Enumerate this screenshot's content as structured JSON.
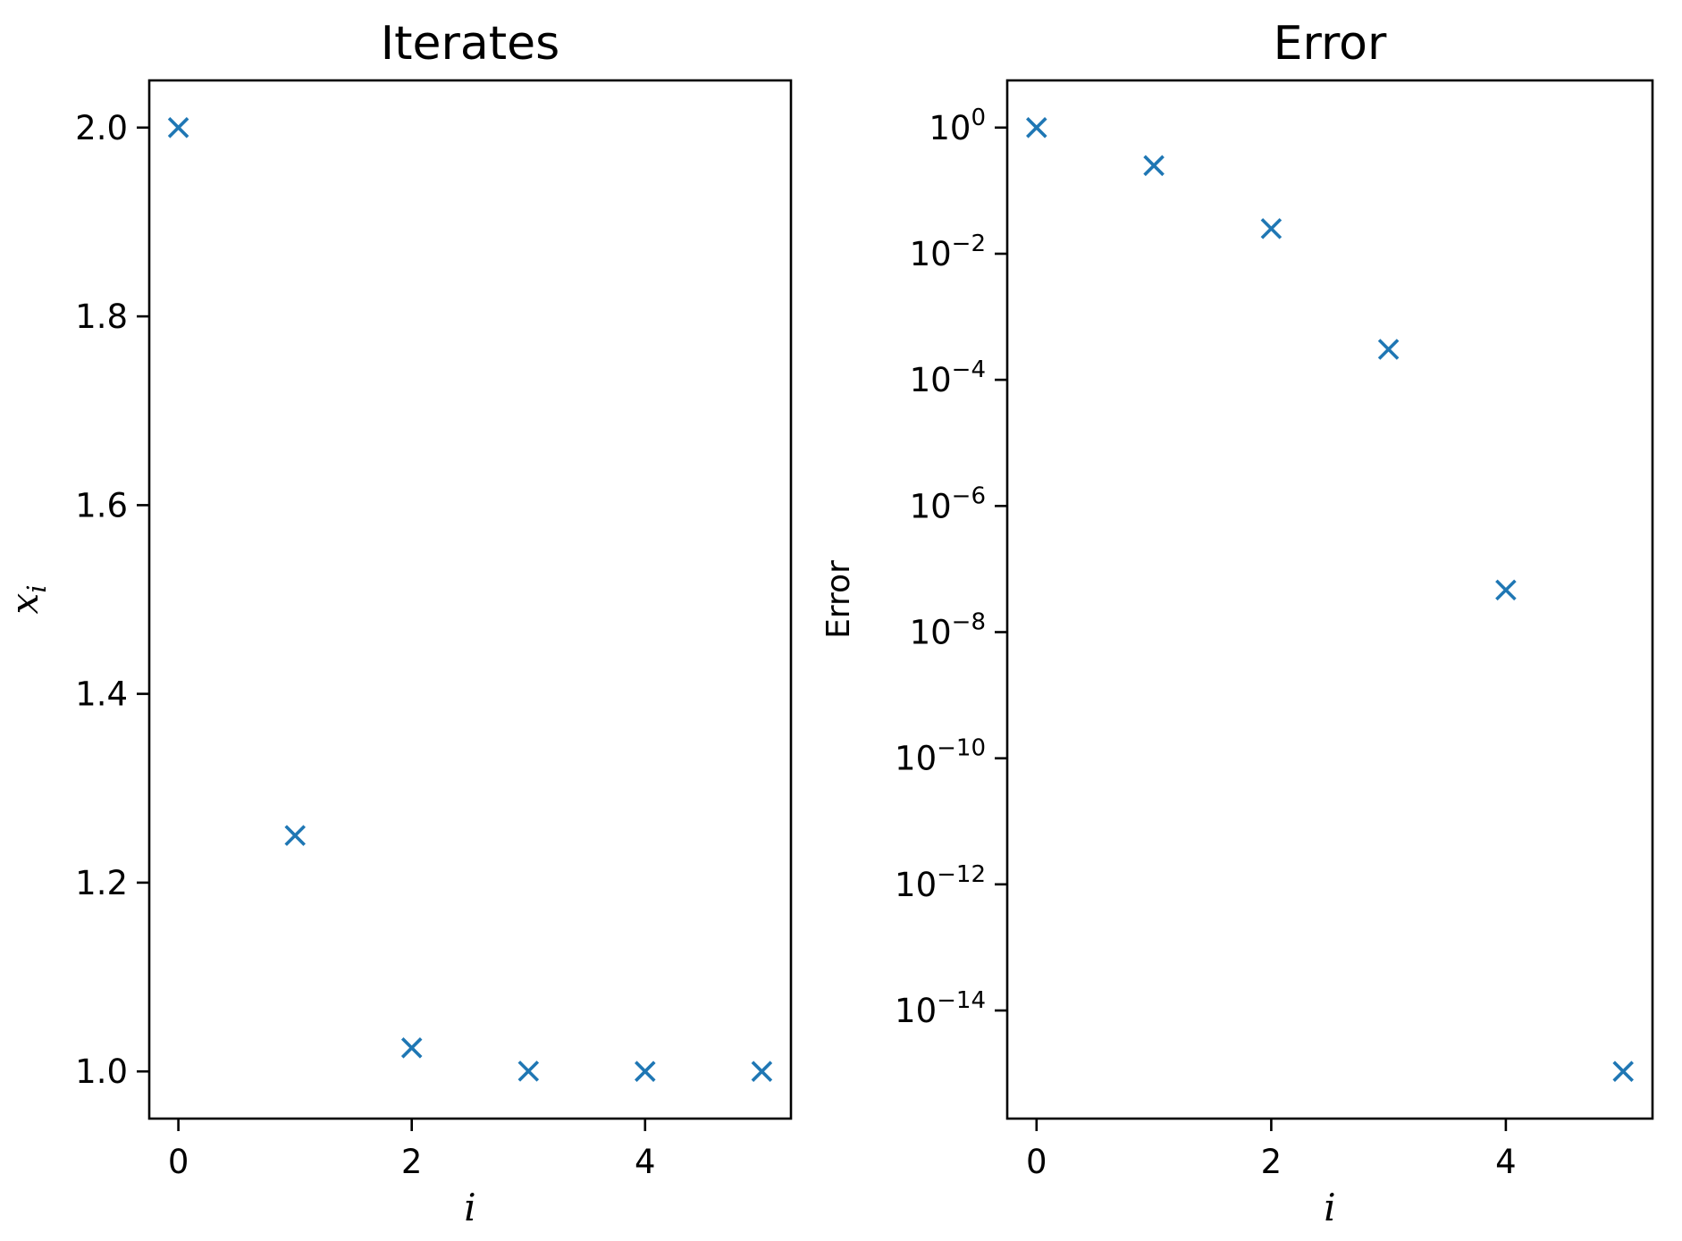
{
  "figure": {
    "background": "#ffffff",
    "marker_color": "#1f77b4"
  },
  "chart_data": [
    {
      "type": "scatter",
      "title": "Iterates",
      "xlabel": "i",
      "ylabel": "x_i",
      "x": [
        0,
        1,
        2,
        3,
        4,
        5
      ],
      "y": [
        2.0,
        1.25,
        1.025,
        1.0003048780487804,
        1.0000000464611474,
        1.000000000000001
      ],
      "xlim": [
        -0.25,
        5.25
      ],
      "ylim": [
        0.95,
        2.05
      ],
      "yscale": "linear",
      "xticks": {
        "values": [
          0,
          2,
          4
        ],
        "labels": [
          "0",
          "2",
          "4"
        ]
      },
      "yticks": {
        "values": [
          1.0,
          1.2,
          1.4,
          1.6,
          1.8,
          2.0
        ],
        "labels": [
          "1.0",
          "1.2",
          "1.4",
          "1.6",
          "1.8",
          "2.0"
        ]
      },
      "grid": false,
      "legend": null,
      "marker": "x",
      "color": "#1f77b4"
    },
    {
      "type": "scatter",
      "title": "Error",
      "xlabel": "i",
      "ylabel": "Error",
      "x": [
        0,
        1,
        2,
        3,
        4,
        5
      ],
      "y": [
        1.0,
        0.25,
        0.025,
        0.00030487804878048775,
        4.6461147e-08,
        1.08e-15
      ],
      "xlim": [
        -0.25,
        5.25
      ],
      "ylim": [
        1.93e-16,
        5.6
      ],
      "yscale": "log",
      "xticks": {
        "values": [
          0,
          2,
          4
        ],
        "labels": [
          "0",
          "2",
          "4"
        ]
      },
      "yticks": {
        "values": [
          1.0,
          0.01,
          0.0001,
          1e-06,
          1e-08,
          1e-10,
          1e-12,
          1e-14
        ],
        "labels": [
          "10^0",
          "10^−2",
          "10^−4",
          "10^−6",
          "10^−8",
          "10^−10",
          "10^−12",
          "10^−14"
        ]
      },
      "grid": false,
      "legend": null,
      "marker": "x",
      "color": "#1f77b4"
    }
  ]
}
